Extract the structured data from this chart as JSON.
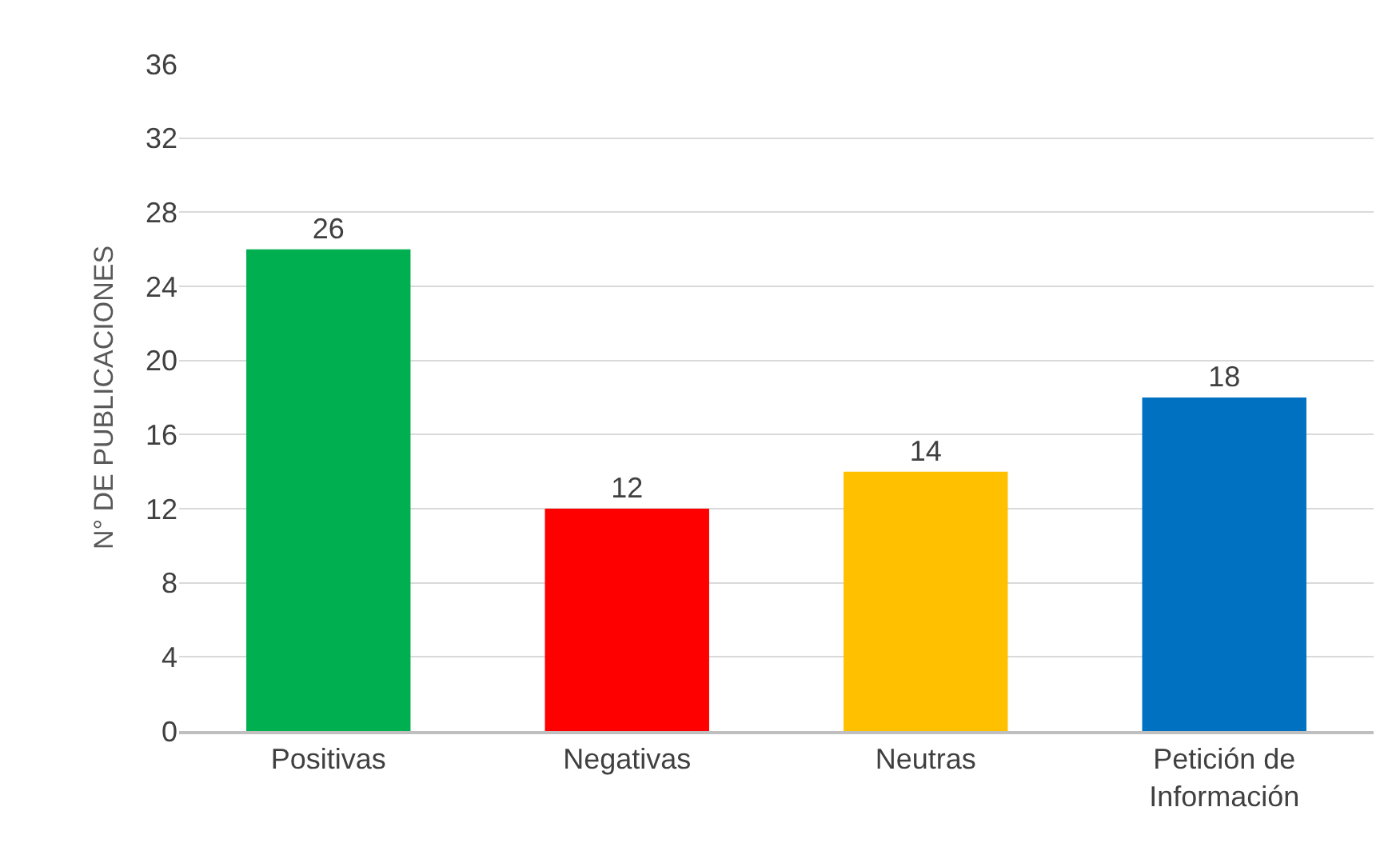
{
  "chart_data": {
    "type": "bar",
    "ylabel": "N° DE PUBLICACIONES",
    "categories": [
      "Positivas",
      "Negativas",
      "Neutras",
      "Petición de Información"
    ],
    "values": [
      26,
      12,
      14,
      18
    ],
    "colors": [
      "#00b050",
      "#ff0000",
      "#ffc000",
      "#0070c0"
    ],
    "ylim": [
      0,
      36
    ],
    "yticks": [
      0,
      4,
      8,
      12,
      16,
      20,
      24,
      28,
      32,
      36
    ],
    "grid": "y",
    "data_labels": true,
    "legend": false
  }
}
